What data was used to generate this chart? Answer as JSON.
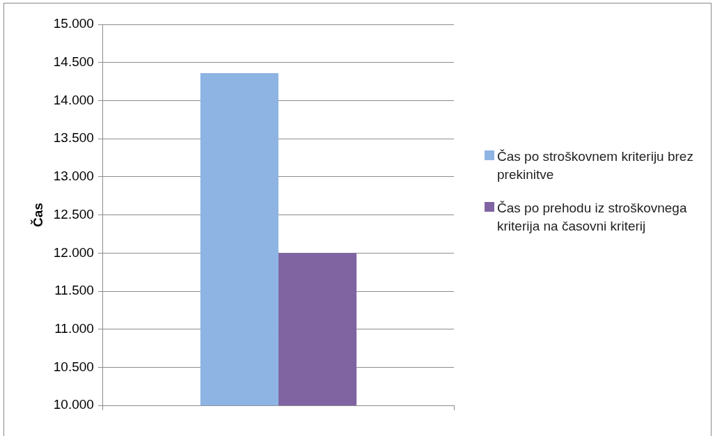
{
  "chart_data": {
    "type": "bar",
    "ylabel": "Čas",
    "categories": [
      null
    ],
    "series": [
      {
        "name": "Čas po stroškovnem kriteriju brez prekinitve",
        "color": "#8eb4e3",
        "values": [
          14360
        ]
      },
      {
        "name": "Čas po prehodu iz stroškovnega kriterija na časovni kriterij",
        "color": "#8064a2",
        "values": [
          12000
        ]
      }
    ],
    "ylim": [
      10000,
      15000
    ],
    "yticks": [
      {
        "value": 10000,
        "label": "10.000"
      },
      {
        "value": 10500,
        "label": "10.500"
      },
      {
        "value": 11000,
        "label": "11.000"
      },
      {
        "value": 11500,
        "label": "11.500"
      },
      {
        "value": 12000,
        "label": "12.000"
      },
      {
        "value": 12500,
        "label": "12.500"
      },
      {
        "value": 13000,
        "label": "13.000"
      },
      {
        "value": 13500,
        "label": "13.500"
      },
      {
        "value": 14000,
        "label": "14.000"
      },
      {
        "value": 14500,
        "label": "14.500"
      },
      {
        "value": 15000,
        "label": "15.000"
      }
    ],
    "grid": "y",
    "legend": "right"
  }
}
